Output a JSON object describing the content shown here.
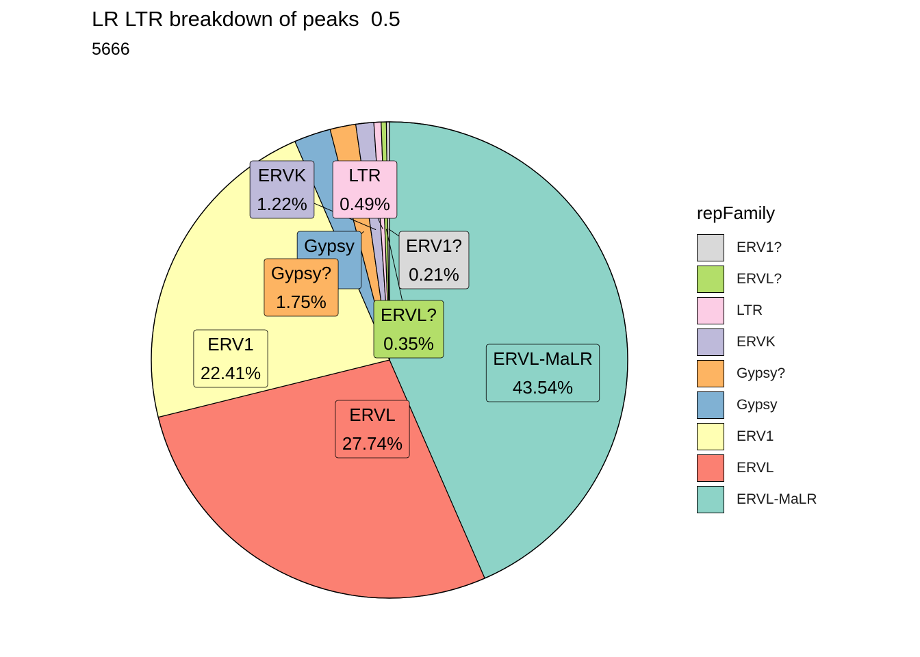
{
  "chart_data": {
    "type": "pie",
    "title": "LR LTR breakdown of peaks  0.5",
    "subtitle": "5666",
    "legend": {
      "title": "repFamily",
      "position": "right"
    },
    "slices": [
      {
        "label": "ERVL-MaLR",
        "value": 43.54,
        "pct_label": "43.54%",
        "color": "#8DD3C7"
      },
      {
        "label": "ERVL",
        "value": 27.74,
        "pct_label": "27.74%",
        "color": "#FB8072"
      },
      {
        "label": "ERV1",
        "value": 22.41,
        "pct_label": "22.41%",
        "color": "#FFFFB3"
      },
      {
        "label": "Gypsy",
        "value": 2.49,
        "pct_label": "%",
        "color": "#80B1D3"
      },
      {
        "label": "Gypsy?",
        "value": 1.75,
        "pct_label": "1.75%",
        "color": "#FDB462"
      },
      {
        "label": "ERVK",
        "value": 1.22,
        "pct_label": "1.22%",
        "color": "#BEBADA"
      },
      {
        "label": "LTR",
        "value": 0.49,
        "pct_label": "0.49%",
        "color": "#FCCDE5"
      },
      {
        "label": "ERVL?",
        "value": 0.35,
        "pct_label": "0.35%",
        "color": "#B3DE69"
      },
      {
        "label": "ERV1?",
        "value": 0.21,
        "pct_label": "0.21%",
        "color": "#D9D9D9"
      }
    ],
    "legend_order": [
      "ERV1?",
      "ERVL?",
      "LTR",
      "ERVK",
      "Gypsy?",
      "Gypsy",
      "ERV1",
      "ERVL",
      "ERVL-MaLR"
    ]
  }
}
